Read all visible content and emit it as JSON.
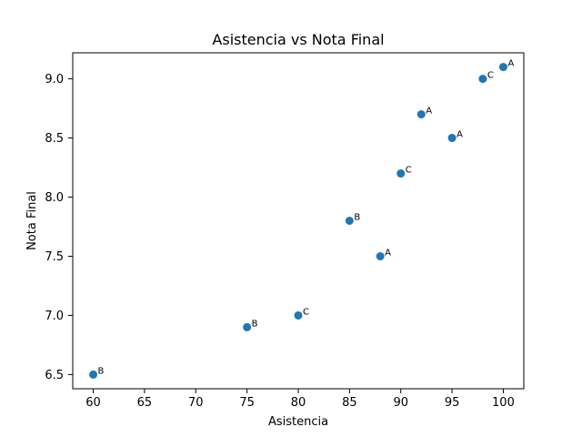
{
  "chart_data": {
    "type": "scatter",
    "title": "Asistencia vs Nota Final",
    "xlabel": "Asistencia",
    "ylabel": "Nota Final",
    "xlim": [
      58,
      102
    ],
    "ylim": [
      6.38,
      9.22
    ],
    "x_ticks": [
      60,
      65,
      70,
      75,
      80,
      85,
      90,
      95,
      100
    ],
    "y_ticks": [
      6.5,
      7.0,
      7.5,
      8.0,
      8.5,
      9.0
    ],
    "grid": false,
    "marker_color": "#1f77b4",
    "points": [
      {
        "x": 60,
        "y": 6.5,
        "label": "B"
      },
      {
        "x": 75,
        "y": 6.9,
        "label": "B"
      },
      {
        "x": 80,
        "y": 7.0,
        "label": "C"
      },
      {
        "x": 85,
        "y": 7.8,
        "label": "B"
      },
      {
        "x": 88,
        "y": 7.5,
        "label": "A"
      },
      {
        "x": 90,
        "y": 8.2,
        "label": "C"
      },
      {
        "x": 92,
        "y": 8.7,
        "label": "A"
      },
      {
        "x": 95,
        "y": 8.5,
        "label": "A"
      },
      {
        "x": 98,
        "y": 9.0,
        "label": "C"
      },
      {
        "x": 100,
        "y": 9.1,
        "label": "A"
      }
    ]
  }
}
